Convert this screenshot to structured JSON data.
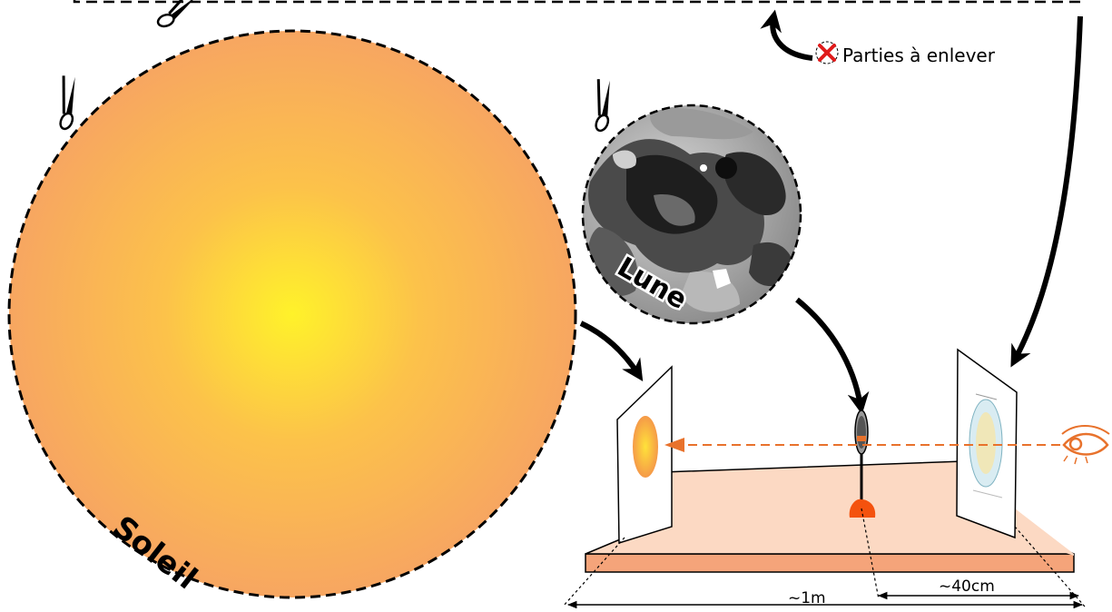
{
  "labels": {
    "sun": "Soleil",
    "moon": "Lune",
    "remove_parts": "Parties à enlever",
    "distance_total": "~1m",
    "distance_partial": "~40cm"
  },
  "colors": {
    "sun_center": "#fff22a",
    "sun_edge": "#f7a661",
    "board_top": "#fcd9c3",
    "board_side": "#f5a47a",
    "stand": "#f4520e",
    "sightline": "#e8722c",
    "remove_mark": "#e01b1b"
  },
  "icons": {
    "cut": "scissors-icon",
    "observer": "eye-icon",
    "remove": "cross-circle-icon"
  }
}
